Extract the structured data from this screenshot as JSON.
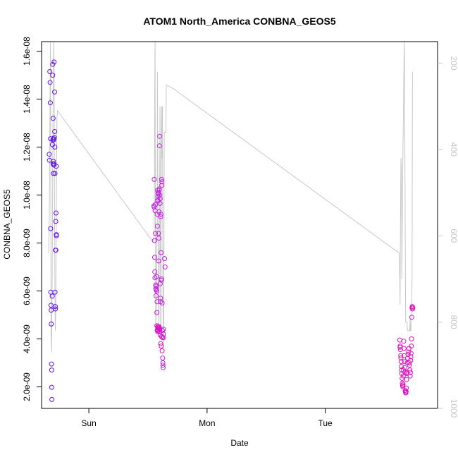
{
  "chart_data": {
    "type": "scatter",
    "title": "ATOM1 North_America CONBNA_GEOS5",
    "xlabel": "Date",
    "ylabel": "CONBNA_GEOS5",
    "ylim": [
      1.1e-09,
      1.64e-08
    ],
    "y2lim": [
      1000,
      150
    ],
    "y2_reversed": true,
    "y2_color": "#c8c8c8",
    "x_unit": "days",
    "xlim": [
      -0.4,
      2.95
    ],
    "x_ticks": [
      {
        "x": 0,
        "label": "Sun"
      },
      {
        "x": 1,
        "label": "Mon"
      },
      {
        "x": 2,
        "label": "Tue"
      }
    ],
    "y_ticks": [
      {
        "v": 2e-09,
        "label": "2.0e-09"
      },
      {
        "v": 4e-09,
        "label": "4.0e-09"
      },
      {
        "v": 6e-09,
        "label": "6.0e-09"
      },
      {
        "v": 8e-09,
        "label": "8.0e-09"
      },
      {
        "v": 1e-08,
        "label": "1.0e-08"
      },
      {
        "v": 1.2e-08,
        "label": "1.2e-08"
      },
      {
        "v": 1.4e-08,
        "label": "1.4e-08"
      },
      {
        "v": 1.6e-08,
        "label": "1.6e-08"
      }
    ],
    "y2_ticks": [
      {
        "v": 200,
        "label": "200"
      },
      {
        "v": 400,
        "label": "400"
      },
      {
        "v": 600,
        "label": "600"
      },
      {
        "v": 800,
        "label": "800"
      },
      {
        "v": 1000,
        "label": "1000"
      }
    ],
    "grid": false,
    "legend": "none",
    "series": [
      {
        "color": "#6010e8",
        "points": [
          [
            -0.335,
            1.17e-08
          ],
          [
            -0.333,
            1.145e-08
          ],
          [
            -0.33,
            1.515e-08
          ],
          [
            -0.328,
            1.47e-08
          ],
          [
            -0.326,
            1.385e-08
          ],
          [
            -0.324,
            1.235e-08
          ],
          [
            -0.323,
            8.6e-09
          ],
          [
            -0.322,
            5.95e-09
          ],
          [
            -0.32,
            5.4e-09
          ],
          [
            -0.319,
            5.2e-09
          ],
          [
            -0.318,
            4.62e-09
          ],
          [
            -0.316,
            2.95e-09
          ],
          [
            -0.315,
            2.7e-09
          ],
          [
            -0.314,
            1.98e-09
          ],
          [
            -0.313,
            1.47e-09
          ],
          [
            -0.31,
            5.78e-09
          ],
          [
            -0.308,
            1.21e-08
          ],
          [
            -0.306,
            1.5e-08
          ],
          [
            -0.305,
            1.545e-08
          ],
          [
            -0.304,
            1.23e-08
          ],
          [
            -0.302,
            1.32e-08
          ],
          [
            -0.3,
            1.14e-08
          ],
          [
            -0.299,
            1.09e-08
          ],
          [
            -0.298,
            1.235e-08
          ],
          [
            -0.296,
            1.125e-08
          ],
          [
            -0.295,
            1.13e-08
          ],
          [
            -0.294,
            1.555e-08
          ],
          [
            -0.292,
            1.24e-08
          ],
          [
            -0.29,
            1.43e-08
          ],
          [
            -0.289,
            1.265e-08
          ],
          [
            -0.288,
            1.2e-08
          ],
          [
            -0.287,
            1.09e-08
          ],
          [
            -0.286,
            5.95e-09
          ],
          [
            -0.284,
            5.35e-09
          ],
          [
            -0.283,
            5.25e-09
          ],
          [
            -0.282,
            7.7e-09
          ],
          [
            -0.28,
            8.9e-09
          ],
          [
            -0.279,
            7.7e-09
          ],
          [
            -0.278,
            9.25e-09
          ],
          [
            -0.276,
            1.12e-08
          ],
          [
            -0.275,
            8.35e-09
          ],
          [
            -0.274,
            8.3e-09
          ],
          [
            -0.303,
            1.13e-08
          ],
          [
            -0.297,
            1.23e-08
          ]
        ]
      },
      {
        "color": "#c020e0",
        "points": [
          [
            0.55,
            9.55e-09
          ],
          [
            0.552,
            9.5e-09
          ],
          [
            0.553,
            1.065e-08
          ],
          [
            0.555,
            8.1e-09
          ],
          [
            0.556,
            7.4e-09
          ],
          [
            0.558,
            6.8e-09
          ],
          [
            0.559,
            6.55e-09
          ],
          [
            0.56,
            9.35e-09
          ],
          [
            0.562,
            9.6e-09
          ],
          [
            0.563,
            8.4e-09
          ],
          [
            0.565,
            6.25e-09
          ],
          [
            0.566,
            6.1e-09
          ],
          [
            0.568,
            5.8e-09
          ],
          [
            0.569,
            6.05e-09
          ],
          [
            0.57,
            6.2e-09
          ],
          [
            0.572,
            6.6e-09
          ],
          [
            0.574,
            6e-09
          ],
          [
            0.575,
            5.1e-09
          ],
          [
            0.577,
            5.55e-09
          ],
          [
            0.578,
            9.2e-09
          ],
          [
            0.58,
            8.7e-09
          ],
          [
            0.581,
            1.02e-08
          ],
          [
            0.582,
            9.8e-09
          ],
          [
            0.584,
            9.75e-09
          ],
          [
            0.585,
            9.95e-09
          ],
          [
            0.586,
            1.01e-08
          ],
          [
            0.588,
            1.005e-08
          ],
          [
            0.589,
            8.4e-09
          ],
          [
            0.59,
            7.25e-09
          ],
          [
            0.592,
            8.2e-09
          ],
          [
            0.593,
            9.3e-09
          ],
          [
            0.594,
            1.02e-08
          ],
          [
            0.596,
            1.025e-08
          ],
          [
            0.598,
            1.205e-08
          ],
          [
            0.599,
            1.245e-08
          ],
          [
            0.6,
            1e-08
          ],
          [
            0.602,
            9.65e-09
          ],
          [
            0.603,
            9.85e-09
          ],
          [
            0.604,
            6.3e-09
          ],
          [
            0.606,
            5.55e-09
          ],
          [
            0.607,
            5.7e-09
          ],
          [
            0.608,
            9.1e-09
          ],
          [
            0.61,
            9.2e-09
          ],
          [
            0.611,
            7.6e-09
          ],
          [
            0.612,
            6.45e-09
          ],
          [
            0.614,
            6.5e-09
          ],
          [
            0.615,
            1.065e-08
          ],
          [
            0.617,
            1.04e-08
          ],
          [
            0.618,
            1.055e-08
          ],
          [
            0.62,
            5.5e-09
          ],
          [
            0.622,
            4.35e-09
          ],
          [
            0.623,
            4.05e-09
          ],
          [
            0.624,
            3.2e-09
          ],
          [
            0.626,
            3e-09
          ],
          [
            0.627,
            2.9e-09
          ],
          [
            0.628,
            2.8e-09
          ],
          [
            0.63,
            4.2e-09
          ],
          [
            0.632,
            4.4e-09
          ],
          [
            0.633,
            4.05e-09
          ],
          [
            0.64,
            7.35e-09
          ],
          [
            0.645,
            7e-09
          ],
          [
            0.582,
            4.5e-09
          ],
          [
            0.585,
            4.35e-09
          ],
          [
            0.59,
            4.45e-09
          ],
          [
            0.595,
            4.5e-09
          ]
        ]
      },
      {
        "color": "#e010c0",
        "points": [
          [
            0.575,
            4.55e-09
          ],
          [
            0.578,
            4.35e-09
          ],
          [
            0.581,
            4.4e-09
          ],
          [
            0.584,
            4.3e-09
          ],
          [
            0.588,
            4.5e-09
          ],
          [
            0.592,
            4.45e-09
          ],
          [
            0.596,
            4.3e-09
          ],
          [
            0.6,
            4.4e-09
          ],
          [
            0.605,
            4.15e-09
          ],
          [
            0.608,
            3.8e-09
          ],
          [
            0.612,
            3.7e-09
          ],
          [
            0.616,
            4.1e-09
          ],
          [
            0.62,
            3.5e-09
          ],
          [
            2.63,
            3.95e-09
          ],
          [
            2.632,
            3.65e-09
          ],
          [
            2.634,
            3.7e-09
          ],
          [
            2.636,
            3.55e-09
          ],
          [
            2.638,
            3.3e-09
          ],
          [
            2.64,
            3.2e-09
          ],
          [
            2.642,
            3.05e-09
          ],
          [
            2.644,
            2.85e-09
          ],
          [
            2.646,
            2.7e-09
          ],
          [
            2.648,
            2.55e-09
          ],
          [
            2.65,
            2.35e-09
          ],
          [
            2.652,
            2.15e-09
          ],
          [
            2.654,
            2.05e-09
          ],
          [
            2.656,
            2e-09
          ],
          [
            2.658,
            2.1e-09
          ],
          [
            2.66,
            2.45e-09
          ],
          [
            2.662,
            2.7e-09
          ],
          [
            2.664,
            3.9e-09
          ],
          [
            2.666,
            3.6e-09
          ],
          [
            2.668,
            3.3e-09
          ],
          [
            2.67,
            3.05e-09
          ],
          [
            2.672,
            2.8e-09
          ],
          [
            2.674,
            2.6e-09
          ],
          [
            2.676,
            1.85e-09
          ],
          [
            2.678,
            1.8e-09
          ],
          [
            2.68,
            1.75e-09
          ],
          [
            2.682,
            1.75e-09
          ],
          [
            2.684,
            1.8e-09
          ],
          [
            2.686,
            1.95e-09
          ],
          [
            2.688,
            2.3e-09
          ],
          [
            2.69,
            2.55e-09
          ],
          [
            2.692,
            2.6e-09
          ],
          [
            2.694,
            3e-09
          ],
          [
            2.696,
            3.2e-09
          ],
          [
            2.7,
            3.35e-09
          ],
          [
            2.705,
            3.45e-09
          ],
          [
            2.708,
            3.6e-09
          ],
          [
            2.71,
            3e-09
          ],
          [
            2.712,
            2.9e-09
          ],
          [
            2.715,
            2.7e-09
          ],
          [
            2.718,
            2.45e-09
          ],
          [
            2.72,
            2.6e-09
          ],
          [
            2.722,
            3.1e-09
          ],
          [
            2.724,
            3.25e-09
          ],
          [
            2.726,
            3.4e-09
          ],
          [
            2.728,
            3.7e-09
          ],
          [
            2.73,
            4e-09
          ],
          [
            2.732,
            4.9e-09
          ],
          [
            2.734,
            5.3e-09
          ],
          [
            2.736,
            5.35e-09
          ],
          [
            2.738,
            5.25e-09
          ],
          [
            2.74,
            5.3e-09
          ]
        ]
      }
    ],
    "line_series": {
      "color": "#c8c8c8",
      "axis": "right",
      "points": [
        [
          -0.34,
          640
        ],
        [
          -0.335,
          560
        ],
        [
          -0.332,
          470
        ],
        [
          -0.33,
          360
        ],
        [
          -0.327,
          240
        ],
        [
          -0.325,
          150
        ],
        [
          -0.322,
          420
        ],
        [
          -0.32,
          820
        ],
        [
          -0.317,
          870
        ],
        [
          -0.314,
          830
        ],
        [
          -0.31,
          680
        ],
        [
          -0.307,
          520
        ],
        [
          -0.304,
          350
        ],
        [
          -0.3,
          220
        ],
        [
          -0.297,
          150
        ],
        [
          -0.294,
          240
        ],
        [
          -0.29,
          560
        ],
        [
          -0.287,
          750
        ],
        [
          -0.284,
          820
        ],
        [
          -0.28,
          780
        ],
        [
          -0.277,
          640
        ],
        [
          -0.274,
          480
        ],
        [
          -0.27,
          330
        ],
        [
          -0.265,
          310
        ],
        [
          0.545,
          615
        ],
        [
          0.55,
          610
        ],
        [
          0.553,
          580
        ],
        [
          0.555,
          500
        ],
        [
          0.558,
          250
        ],
        [
          0.56,
          150
        ],
        [
          0.563,
          620
        ],
        [
          0.566,
          820
        ],
        [
          0.569,
          780
        ],
        [
          0.572,
          740
        ],
        [
          0.575,
          640
        ],
        [
          0.578,
          560
        ],
        [
          0.58,
          220
        ],
        [
          0.583,
          420
        ],
        [
          0.586,
          600
        ],
        [
          0.59,
          770
        ],
        [
          0.593,
          810
        ],
        [
          0.596,
          640
        ],
        [
          0.599,
          480
        ],
        [
          0.602,
          300
        ],
        [
          0.605,
          600
        ],
        [
          0.608,
          840
        ],
        [
          0.611,
          780
        ],
        [
          0.614,
          360
        ],
        [
          0.617,
          300
        ],
        [
          0.62,
          420
        ],
        [
          0.623,
          300
        ],
        [
          0.626,
          690
        ],
        [
          0.629,
          840
        ],
        [
          0.632,
          860
        ],
        [
          0.635,
          680
        ],
        [
          0.638,
          360
        ],
        [
          0.64,
          360
        ],
        [
          0.652,
          360
        ],
        [
          0.655,
          250
        ],
        [
          0.72,
          260
        ],
        [
          2.625,
          640
        ],
        [
          2.63,
          700
        ],
        [
          2.633,
          760
        ],
        [
          2.636,
          580
        ],
        [
          2.64,
          420
        ],
        [
          2.643,
          440
        ],
        [
          2.646,
          540
        ],
        [
          2.648,
          700
        ],
        [
          2.652,
          560
        ],
        [
          2.656,
          420
        ],
        [
          2.66,
          350
        ],
        [
          2.663,
          260
        ],
        [
          2.666,
          190
        ],
        [
          2.669,
          150
        ],
        [
          2.672,
          320
        ],
        [
          2.676,
          560
        ],
        [
          2.68,
          800
        ],
        [
          2.686,
          800
        ],
        [
          2.692,
          800
        ],
        [
          2.696,
          820
        ],
        [
          2.7,
          820
        ],
        [
          2.714,
          820
        ],
        [
          2.718,
          790
        ],
        [
          2.72,
          820
        ],
        [
          2.724,
          820
        ],
        [
          2.73,
          780
        ],
        [
          2.734,
          700
        ],
        [
          2.736,
          440
        ],
        [
          2.738,
          220
        ]
      ]
    }
  }
}
